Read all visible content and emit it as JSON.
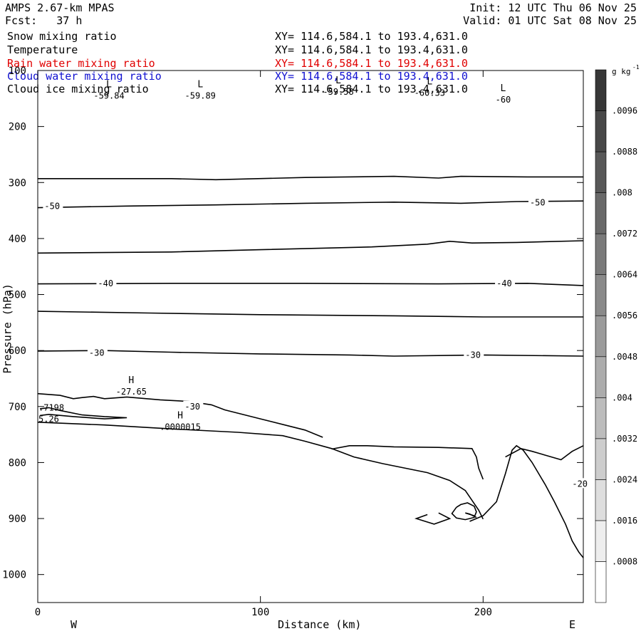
{
  "header": {
    "model": "AMPS 2.67-km MPAS",
    "forecast": "Fcst:   37 h",
    "init": "Init: 12 UTC Thu 06 Nov 25",
    "valid": "Valid: 01 UTC Sat 08 Nov 25"
  },
  "fields": [
    {
      "name": "Snow mixing ratio",
      "xy": "XY= 114.6,584.1 to 193.4,631.0",
      "color": "#000000"
    },
    {
      "name": "Temperature",
      "xy": "XY= 114.6,584.1 to 193.4,631.0",
      "color": "#000000"
    },
    {
      "name": "Rain water mixing ratio",
      "xy": "XY= 114.6,584.1 to 193.4,631.0",
      "color": "#e00000"
    },
    {
      "name": "Cloud water mixing ratio",
      "xy": "XY= 114.6,584.1 to 193.4,631.0",
      "color": "#1010d0"
    },
    {
      "name": "Cloud ice mixing ratio",
      "xy": "XY= 114.6,584.1 to 193.4,631.0",
      "color": "#000000"
    }
  ],
  "chart_data": {
    "type": "cross-section contour",
    "xlabel": "Distance (km)",
    "ylabel": "Pressure (hPa)",
    "xlim": [
      0,
      245
    ],
    "ylim": [
      1050,
      100
    ],
    "x_ticks": [
      "0",
      "100",
      "200"
    ],
    "y_ticks": [
      "100",
      "200",
      "300",
      "400",
      "500",
      "600",
      "700",
      "800",
      "900",
      "1000"
    ],
    "x_tick_values": [
      0,
      100,
      200
    ],
    "y_tick_values": [
      100,
      200,
      300,
      400,
      500,
      600,
      700,
      800,
      900,
      1000
    ],
    "left_end_label": "W",
    "right_end_label": "E",
    "colorbar": {
      "unit": "g kg",
      "unit_exp": "-1",
      "labels": [
        ".0008",
        ".0016",
        ".0024",
        ".0032",
        ".004",
        ".0048",
        ".0056",
        ".0064",
        ".0072",
        ".008",
        ".0088",
        ".0096"
      ]
    },
    "contour_labels": [
      "-50",
      "-50",
      "-40",
      "-40",
      "-30",
      "-30",
      "-30",
      "-20"
    ],
    "extrema": [
      {
        "type": "L",
        "value": "-59.84",
        "x": 32,
        "p": 130
      },
      {
        "type": "L",
        "value": "-59.89",
        "x": 73,
        "p": 130
      },
      {
        "type": "L",
        "value": "-59.58",
        "x": 135,
        "p": 123
      },
      {
        "type": "L",
        "value": "-60.33",
        "x": 176,
        "p": 125
      },
      {
        "type": "L",
        "value": "-60",
        "x": 209,
        "p": 137
      },
      {
        "type": "H",
        "value": "-27.65",
        "x": 42,
        "p": 658
      },
      {
        "type": "H",
        "value": ".0000015",
        "x": 64,
        "p": 721
      }
    ],
    "edge_values": [
      ".7198",
      "5.26"
    ],
    "isotherms": [
      {
        "points": [
          [
            0,
            293
          ],
          [
            60,
            293
          ],
          [
            80,
            295
          ],
          [
            120,
            291
          ],
          [
            160,
            289
          ],
          [
            180,
            292
          ],
          [
            190,
            289
          ],
          [
            220,
            290
          ],
          [
            245,
            290
          ]
        ]
      },
      {
        "points": [
          [
            0,
            345
          ],
          [
            40,
            342
          ],
          [
            80,
            340
          ],
          [
            120,
            337
          ],
          [
            160,
            335
          ],
          [
            190,
            337
          ],
          [
            215,
            334
          ],
          [
            245,
            333
          ]
        ]
      },
      {
        "points": [
          [
            0,
            426
          ],
          [
            60,
            424
          ],
          [
            100,
            420
          ],
          [
            150,
            415
          ],
          [
            175,
            410
          ],
          [
            185,
            405
          ],
          [
            195,
            408
          ],
          [
            215,
            407
          ],
          [
            245,
            404
          ]
        ]
      },
      {
        "points": [
          [
            0,
            481
          ],
          [
            60,
            480
          ],
          [
            120,
            480
          ],
          [
            180,
            481
          ],
          [
            220,
            480
          ],
          [
            245,
            484
          ]
        ]
      },
      {
        "points": [
          [
            0,
            530
          ],
          [
            50,
            533
          ],
          [
            100,
            536
          ],
          [
            160,
            538
          ],
          [
            200,
            540
          ],
          [
            245,
            540
          ]
        ]
      },
      {
        "points": [
          [
            0,
            601
          ],
          [
            30,
            600
          ],
          [
            60,
            603
          ],
          [
            100,
            606
          ],
          [
            140,
            608
          ],
          [
            160,
            610
          ],
          [
            200,
            608
          ],
          [
            245,
            610
          ]
        ]
      },
      {
        "points": [
          [
            0,
            677
          ],
          [
            10,
            680
          ],
          [
            16,
            686
          ],
          [
            20,
            684
          ],
          [
            25,
            682
          ],
          [
            30,
            686
          ],
          [
            40,
            683
          ],
          [
            55,
            688
          ],
          [
            68,
            691
          ],
          [
            78,
            697
          ],
          [
            84,
            706
          ],
          [
            100,
            722
          ],
          [
            113,
            735
          ],
          [
            120,
            742
          ],
          [
            128,
            755
          ]
        ]
      },
      {
        "points": [
          [
            1,
            704
          ],
          [
            5,
            702
          ],
          [
            10,
            707
          ],
          [
            20,
            715
          ],
          [
            30,
            718
          ],
          [
            40,
            720
          ],
          [
            30,
            722
          ],
          [
            16,
            718
          ],
          [
            5,
            714
          ],
          [
            1,
            716
          ]
        ]
      },
      {
        "points": [
          [
            0,
            728
          ],
          [
            30,
            733
          ],
          [
            60,
            740
          ],
          [
            90,
            746
          ],
          [
            110,
            752
          ],
          [
            120,
            762
          ],
          [
            132,
            775
          ],
          [
            142,
            790
          ],
          [
            155,
            802
          ],
          [
            175,
            818
          ],
          [
            185,
            832
          ],
          [
            192,
            850
          ],
          [
            198,
            885
          ],
          [
            200,
            901
          ]
        ]
      },
      {
        "points": [
          [
            132,
            776
          ],
          [
            140,
            770
          ],
          [
            148,
            770
          ],
          [
            160,
            772
          ],
          [
            180,
            773
          ],
          [
            195,
            775
          ],
          [
            197,
            790
          ],
          [
            198,
            810
          ],
          [
            200,
            830
          ]
        ]
      },
      {
        "points": [
          [
            188,
            880
          ],
          [
            190,
            875
          ],
          [
            193,
            872
          ],
          [
            196,
            878
          ],
          [
            197,
            888
          ],
          [
            196,
            898
          ],
          [
            192,
            902
          ],
          [
            188,
            899
          ],
          [
            186,
            891
          ],
          [
            188,
            880
          ]
        ]
      },
      {
        "points": [
          [
            194,
            905
          ],
          [
            200,
            895
          ],
          [
            206,
            870
          ],
          [
            210,
            820
          ],
          [
            213,
            778
          ],
          [
            215,
            770
          ],
          [
            218,
            778
          ],
          [
            222,
            800
          ],
          [
            228,
            840
          ],
          [
            232,
            870
          ],
          [
            237,
            910
          ],
          [
            240,
            940
          ],
          [
            243,
            960
          ],
          [
            245,
            970
          ]
        ]
      },
      {
        "points": [
          [
            197,
            898
          ],
          [
            194,
            892
          ],
          [
            192,
            890
          ],
          [
            196,
            895
          ]
        ]
      },
      {
        "points": [
          [
            210,
            790
          ],
          [
            217,
            775
          ],
          [
            222,
            780
          ],
          [
            235,
            795
          ],
          [
            240,
            780
          ],
          [
            245,
            770
          ]
        ]
      },
      {
        "points": [
          [
            180,
            890
          ],
          [
            185,
            900
          ],
          [
            178,
            910
          ],
          [
            170,
            900
          ],
          [
            175,
            893
          ]
        ]
      }
    ]
  }
}
